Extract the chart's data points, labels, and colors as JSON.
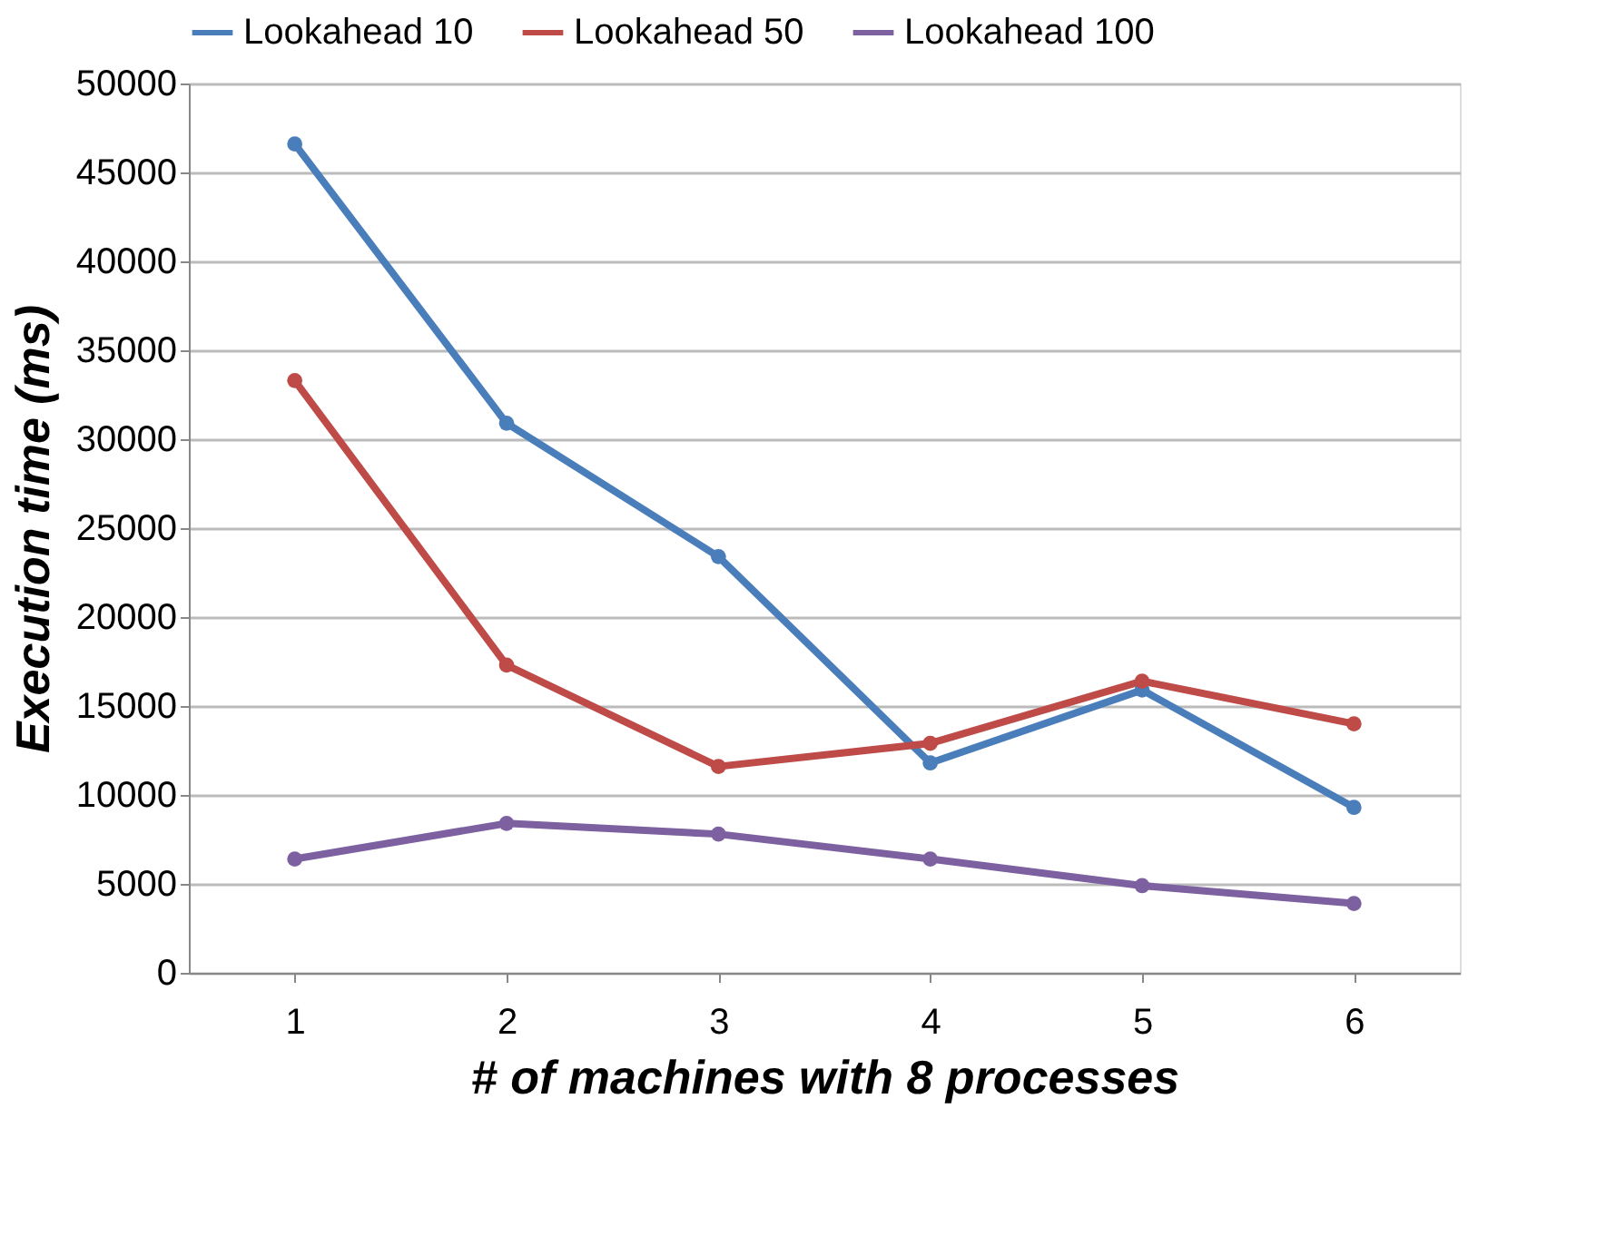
{
  "chart_data": {
    "type": "line",
    "xlabel": "# of machines with 8 processes",
    "ylabel": "Execution time (ms)",
    "categories": [
      "1",
      "2",
      "3",
      "4",
      "5",
      "6"
    ],
    "series": [
      {
        "name": "Lookahead 10",
        "color": "#4a7ebb",
        "values": [
          46600,
          30900,
          23400,
          11800,
          15900,
          9300
        ]
      },
      {
        "name": "Lookahead 50",
        "color": "#be4b48",
        "values": [
          33300,
          17300,
          11600,
          12900,
          16400,
          14000
        ]
      },
      {
        "name": "Lookahead 100",
        "color": "#7d60a0",
        "values": [
          6400,
          8400,
          7800,
          6400,
          4900,
          3900
        ]
      }
    ],
    "ylim": [
      0,
      50000
    ],
    "yticks": [
      0,
      5000,
      10000,
      15000,
      20000,
      25000,
      30000,
      35000,
      40000,
      45000,
      50000
    ],
    "grid": "y",
    "legend": "top",
    "marker": "circle",
    "line_style": "solid"
  }
}
